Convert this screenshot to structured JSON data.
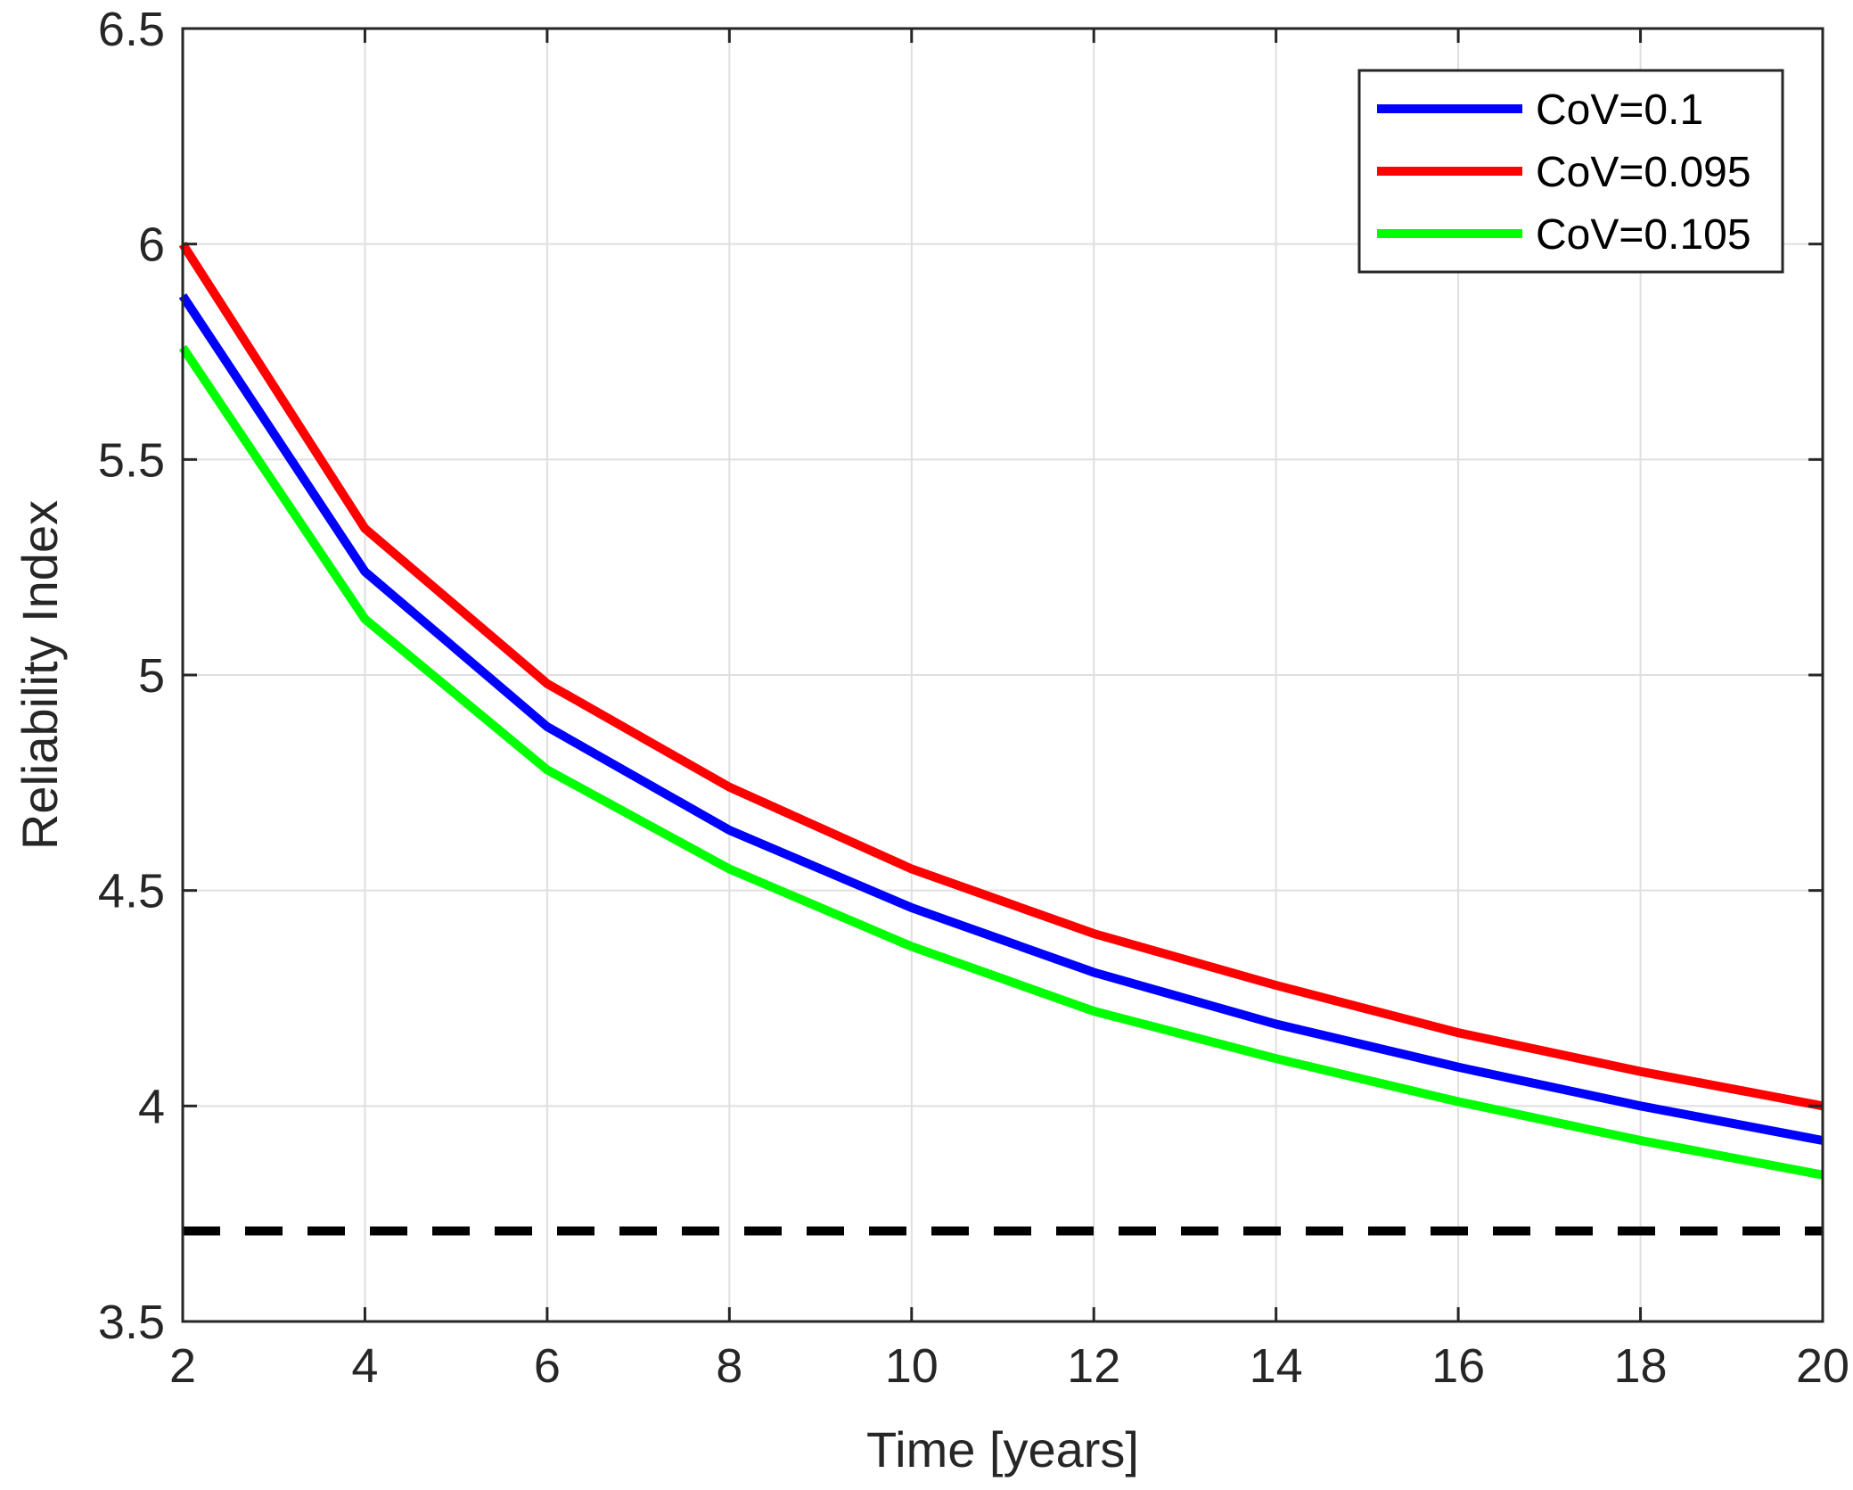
{
  "chart_data": {
    "type": "line",
    "title": "",
    "xlabel": "Time [years]",
    "ylabel": "Reliability Index",
    "xlim": [
      2,
      20
    ],
    "ylim": [
      3.5,
      6.5
    ],
    "xticks": [
      2,
      4,
      6,
      8,
      10,
      12,
      14,
      16,
      18,
      20
    ],
    "yticks": [
      3.5,
      4,
      4.5,
      5,
      5.5,
      6,
      6.5
    ],
    "xtick_labels": [
      "2",
      "4",
      "6",
      "8",
      "10",
      "12",
      "14",
      "16",
      "18",
      "20"
    ],
    "ytick_labels": [
      "3.5",
      "4",
      "4.5",
      "5",
      "5.5",
      "6",
      "6.5"
    ],
    "grid": true,
    "legend_position": "top-right",
    "x": [
      2,
      4,
      6,
      8,
      10,
      12,
      14,
      16,
      18,
      20
    ],
    "series": [
      {
        "name": "CoV=0.1",
        "color": "#0000ff",
        "values": [
          5.88,
          5.24,
          4.88,
          4.64,
          4.46,
          4.31,
          4.19,
          4.09,
          4.0,
          3.92
        ]
      },
      {
        "name": "CoV=0.095",
        "color": "#ff0000",
        "values": [
          6.0,
          5.34,
          4.98,
          4.74,
          4.55,
          4.4,
          4.28,
          4.17,
          4.08,
          4.0
        ]
      },
      {
        "name": "CoV=0.105",
        "color": "#00ff00",
        "values": [
          5.76,
          5.13,
          4.78,
          4.55,
          4.37,
          4.22,
          4.11,
          4.01,
          3.92,
          3.84
        ]
      }
    ],
    "reference_line": {
      "y": 3.71,
      "style": "dashed",
      "color": "#000000"
    }
  }
}
